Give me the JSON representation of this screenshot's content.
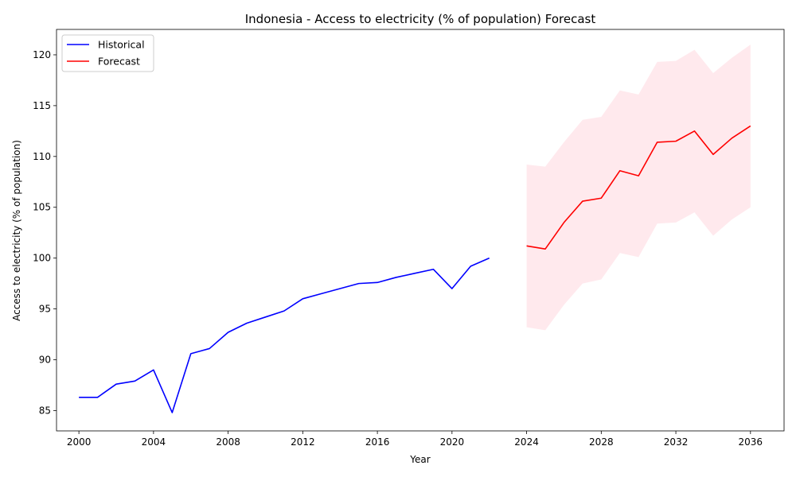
{
  "chart_data": {
    "type": "line",
    "title": "Indonesia - Access to electricity (% of population) Forecast",
    "xlabel": "Year",
    "ylabel": "Access to electricity (% of population)",
    "xlim": [
      1998.8,
      2037.8
    ],
    "ylim": [
      83.0,
      122.5
    ],
    "x_ticks": [
      2000,
      2004,
      2008,
      2012,
      2016,
      2020,
      2024,
      2028,
      2032,
      2036
    ],
    "y_ticks": [
      85,
      90,
      95,
      100,
      105,
      110,
      115,
      120
    ],
    "grid": false,
    "legend_position": "upper-left",
    "series": [
      {
        "name": "Historical",
        "color": "#0000ff",
        "x": [
          2000,
          2001,
          2002,
          2003,
          2004,
          2005,
          2006,
          2007,
          2008,
          2009,
          2010,
          2011,
          2012,
          2013,
          2014,
          2015,
          2016,
          2017,
          2018,
          2019,
          2020,
          2021,
          2022
        ],
        "y": [
          86.3,
          86.3,
          87.6,
          87.9,
          89.0,
          84.8,
          90.6,
          91.1,
          92.7,
          93.6,
          94.2,
          94.8,
          96.0,
          96.5,
          97.0,
          97.5,
          97.6,
          98.1,
          98.5,
          98.9,
          97.0,
          99.2,
          100.0
        ]
      },
      {
        "name": "Forecast",
        "color": "#ff0000",
        "x": [
          2024,
          2025,
          2026,
          2027,
          2028,
          2029,
          2030,
          2031,
          2032,
          2033,
          2034,
          2035,
          2036
        ],
        "y": [
          101.2,
          100.9,
          103.5,
          105.6,
          105.9,
          108.6,
          108.1,
          111.4,
          111.5,
          112.5,
          110.2,
          111.8,
          113.0
        ]
      }
    ],
    "confidence_band": {
      "color": "#ffc0cb",
      "x": [
        2024,
        2025,
        2026,
        2027,
        2028,
        2029,
        2030,
        2031,
        2032,
        2033,
        2034,
        2035,
        2036
      ],
      "lower": [
        93.2,
        92.9,
        95.4,
        97.5,
        97.9,
        100.5,
        100.1,
        103.4,
        103.5,
        104.5,
        102.2,
        103.8,
        105.0
      ],
      "upper": [
        109.2,
        109.0,
        111.4,
        113.6,
        113.9,
        116.5,
        116.1,
        119.3,
        119.4,
        120.5,
        118.2,
        119.7,
        121.0
      ]
    }
  }
}
